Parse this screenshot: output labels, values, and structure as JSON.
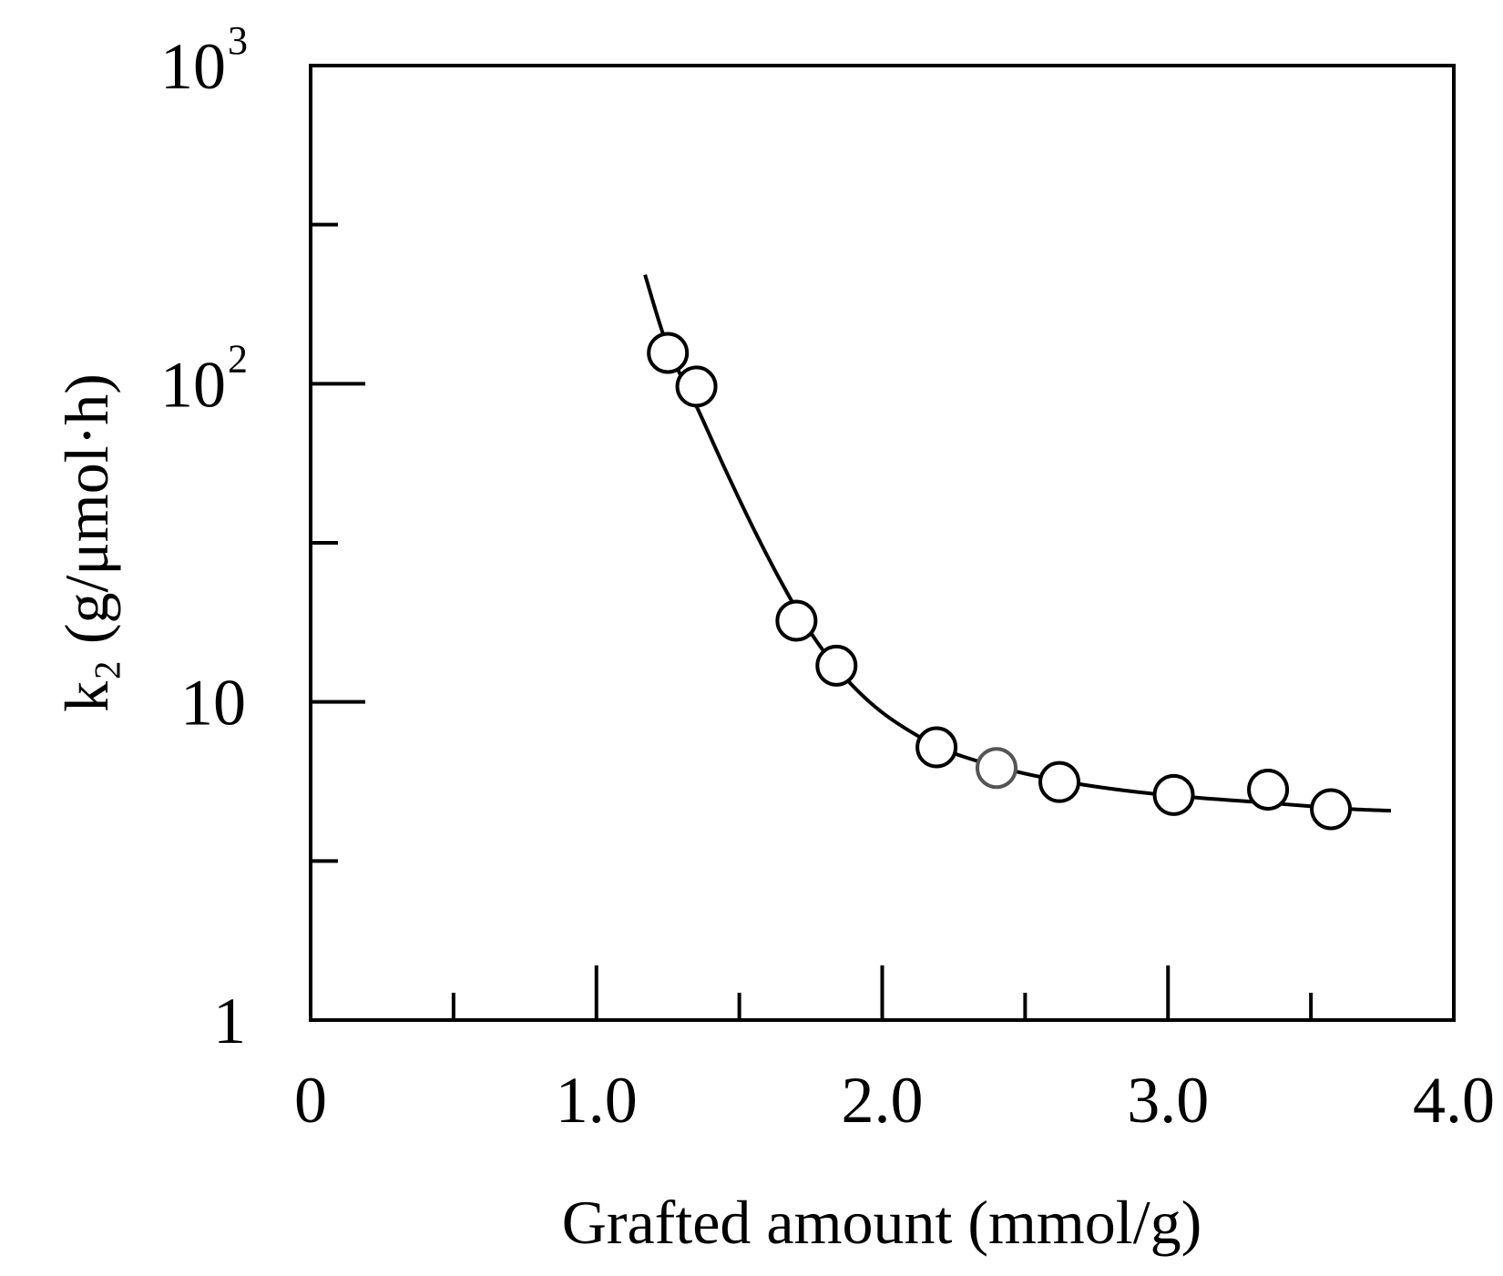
{
  "chart_data": {
    "type": "scatter",
    "xlabel": "Grafted amount (mmol/g)",
    "ylabel": "k₂ (g/μmol·h)",
    "xlim": [
      0,
      4.0
    ],
    "ylim": [
      1,
      1000
    ],
    "yscale": "log",
    "grid": false,
    "x_ticks": [
      0,
      1.0,
      2.0,
      3.0,
      4.0
    ],
    "x_tick_labels": [
      "0",
      "1.0",
      "2.0",
      "3.0",
      "4.0"
    ],
    "y_ticks": [
      1,
      10,
      100,
      1000
    ],
    "y_tick_labels": [
      {
        "base": "1",
        "exp": ""
      },
      {
        "base": "10",
        "exp": ""
      },
      {
        "base": "10",
        "exp": "2"
      },
      {
        "base": "10",
        "exp": "3"
      }
    ],
    "series": [
      {
        "marker": "open-circle",
        "x": [
          1.25,
          1.35,
          1.7,
          1.84,
          2.19,
          2.4,
          2.62,
          3.02,
          3.35,
          3.57
        ],
        "y": [
          125,
          98,
          18,
          13,
          7.2,
          6.2,
          5.6,
          5.1,
          5.3,
          4.6
        ],
        "edge_colors": [
          "#000000",
          "#000000",
          "#000000",
          "#000000",
          "#000000",
          "#555555",
          "#000000",
          "#000000",
          "#000000",
          "#000000"
        ]
      }
    ],
    "curve": {
      "x": [
        1.17,
        1.25,
        1.35,
        1.45,
        1.55,
        1.65,
        1.75,
        1.85,
        1.95,
        2.05,
        2.2,
        2.35,
        2.5,
        2.7,
        2.9,
        3.1,
        3.3,
        3.5,
        3.65,
        3.78
      ],
      "y": [
        220,
        130,
        85,
        54,
        35,
        23.5,
        16.5,
        12.5,
        10.1,
        8.6,
        7.2,
        6.45,
        5.95,
        5.5,
        5.2,
        5.0,
        4.85,
        4.7,
        4.6,
        4.55
      ]
    }
  }
}
